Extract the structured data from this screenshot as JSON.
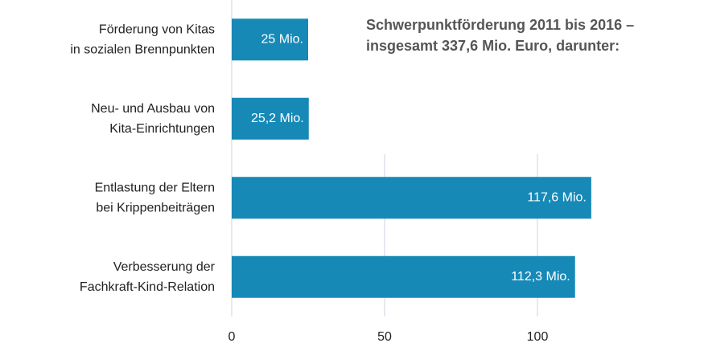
{
  "chart_data": {
    "type": "bar",
    "orientation": "horizontal",
    "title": [
      "Schwerpunktförderung 2011 bis 2016 –",
      "insgesamt 337,6 Mio. Euro, darunter:"
    ],
    "categories": [
      [
        "Förderung von Kitas",
        "in sozialen Brennpunkten"
      ],
      [
        "Neu- und Ausbau von",
        "Kita-Einrichtungen"
      ],
      [
        "Entlastung der Eltern",
        "bei Krippenbeiträgen"
      ],
      [
        "Verbesserung der",
        "Fachkraft-Kind-Relation"
      ]
    ],
    "values": [
      25,
      25.2,
      117.6,
      112.3
    ],
    "value_labels": [
      "25 Mio.",
      "25,2 Mio.",
      "117,6 Mio.",
      "112,3 Mio."
    ],
    "color": "#1689b7",
    "xlim": [
      0,
      150
    ],
    "xticks": [
      0,
      50,
      100
    ],
    "grid": true
  }
}
